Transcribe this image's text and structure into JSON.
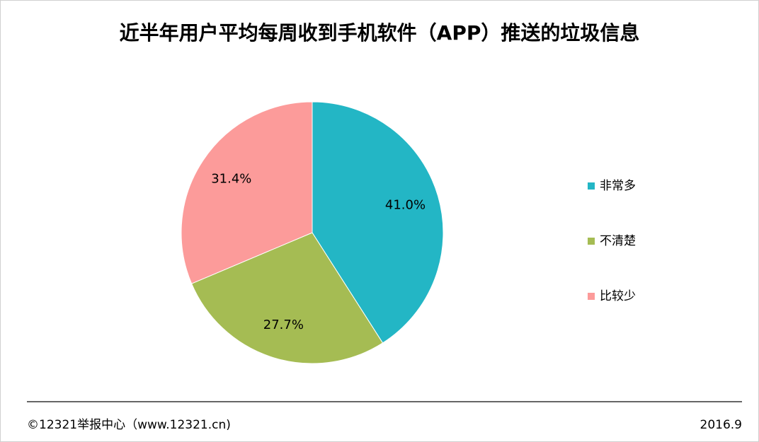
{
  "chart_data": {
    "type": "pie",
    "title": "近半年用户平均每周收到手机软件（APP）推送的垃圾信息",
    "categories": [
      "非常多",
      "不清楚",
      "比较少"
    ],
    "values": [
      41.0,
      27.7,
      31.4
    ],
    "value_labels": [
      "41.0%",
      "27.7%",
      "31.4%"
    ],
    "colors": [
      "#23b6c5",
      "#a5bc53",
      "#fc9b9a"
    ],
    "legend": "right",
    "source": "©12321举报中心（www.12321.cn)",
    "date": "2016.9"
  }
}
